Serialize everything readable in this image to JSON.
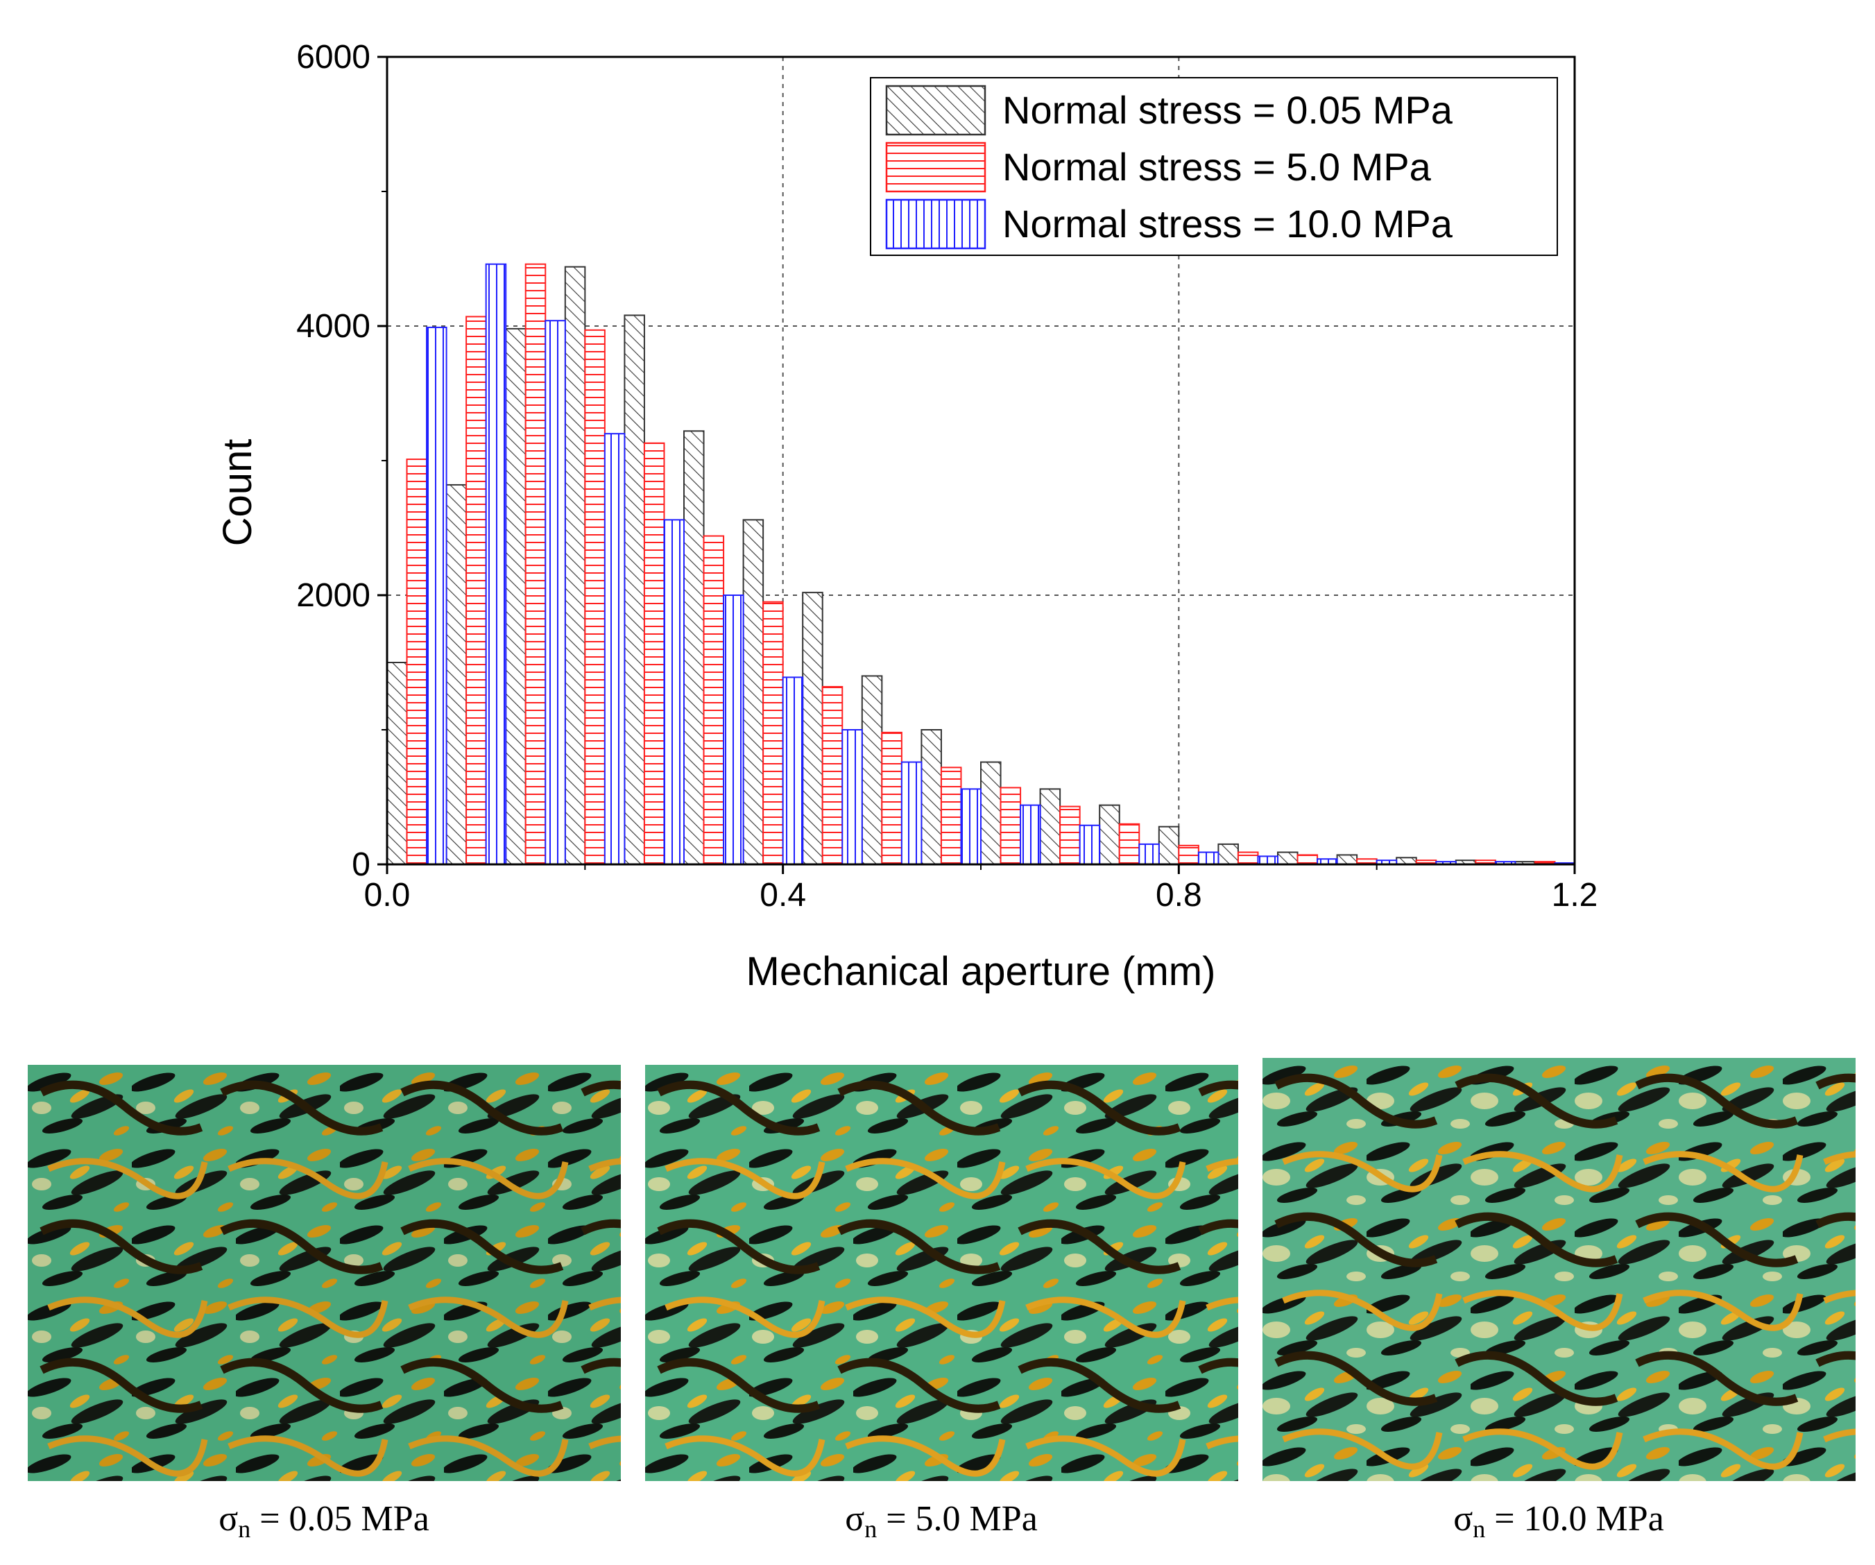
{
  "chart_data": {
    "type": "bar",
    "title": "",
    "xlabel": "Mechanical aperture (mm)",
    "ylabel": "Count",
    "xlim": [
      0.0,
      1.2
    ],
    "ylim": [
      0,
      6000
    ],
    "xticks": [
      "0.0",
      "0.4",
      "0.8",
      "1.2"
    ],
    "yticks": [
      "0",
      "2000",
      "4000",
      "6000"
    ],
    "grid": true,
    "legend_position": "top-right",
    "bin_width": 0.02,
    "series": [
      {
        "name": "Normal stress = 0.05 MPa",
        "color": "#333333",
        "hatch": "diagonal",
        "x": [
          0.01,
          0.07,
          0.13,
          0.19,
          0.25,
          0.31,
          0.37,
          0.43,
          0.49,
          0.55,
          0.61,
          0.67,
          0.73,
          0.79,
          0.85,
          0.91,
          0.97,
          1.03,
          1.09,
          1.15
        ],
        "values": [
          1500,
          2820,
          3980,
          4440,
          4080,
          3220,
          2560,
          2020,
          1400,
          1000,
          760,
          560,
          440,
          280,
          150,
          90,
          70,
          50,
          30,
          20
        ]
      },
      {
        "name": "Normal stress = 5.0 MPa",
        "color": "#ff2020",
        "hatch": "horizontal",
        "x": [
          0.03,
          0.09,
          0.15,
          0.21,
          0.27,
          0.33,
          0.39,
          0.45,
          0.51,
          0.57,
          0.63,
          0.69,
          0.75,
          0.81,
          0.87,
          0.93,
          0.99,
          1.05,
          1.11,
          1.17
        ],
        "values": [
          3010,
          4070,
          4460,
          3970,
          3130,
          2440,
          1950,
          1320,
          980,
          720,
          570,
          430,
          300,
          140,
          90,
          70,
          40,
          30,
          30,
          20
        ]
      },
      {
        "name": "Normal stress = 10.0 MPa",
        "color": "#2020ff",
        "hatch": "vertical",
        "x": [
          0.05,
          0.11,
          0.17,
          0.23,
          0.29,
          0.35,
          0.41,
          0.47,
          0.53,
          0.59,
          0.65,
          0.71,
          0.77,
          0.83,
          0.89,
          0.95,
          1.01,
          1.07,
          1.13,
          1.19
        ],
        "values": [
          3990,
          4460,
          4040,
          3200,
          2560,
          2000,
          1390,
          1000,
          760,
          560,
          440,
          290,
          150,
          90,
          60,
          40,
          30,
          20,
          20,
          10
        ]
      }
    ]
  },
  "panels": [
    {
      "caption_symbol": "σ",
      "caption_sub": "n",
      "caption_value": " = 0.05 MPa"
    },
    {
      "caption_symbol": "σ",
      "caption_sub": "n",
      "caption_value": " = 5.0 MPa"
    },
    {
      "caption_symbol": "σ",
      "caption_sub": "n",
      "caption_value": " = 10.0 MPa"
    }
  ]
}
